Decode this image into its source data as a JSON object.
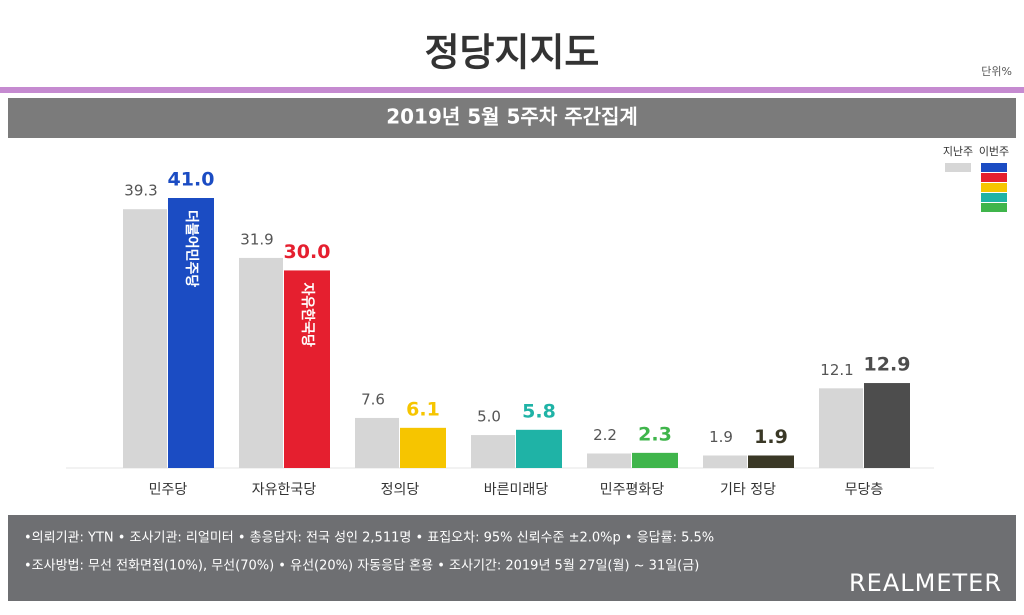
{
  "chart_data": {
    "type": "bar",
    "title": "정당지지도",
    "unit_note": "단위%",
    "subtitle": "2019년 5월 5주차 주간집계",
    "categories": [
      "민주당",
      "자유한국당",
      "정의당",
      "바른미래당",
      "민주평화당",
      "기타 정당",
      "무당층"
    ],
    "series": [
      {
        "name": "지난주",
        "color": "#d6d6d6",
        "values": [
          39.3,
          31.9,
          7.6,
          5.0,
          2.2,
          1.9,
          12.1
        ],
        "value_labels": [
          "39.3",
          "31.9",
          "7.6",
          "5.0",
          "2.2",
          "1.9",
          "12.1"
        ]
      },
      {
        "name": "이번주",
        "colors": [
          "#1b4cc3",
          "#e51f2f",
          "#f6c500",
          "#1fb3a6",
          "#3fb54b",
          "#3a3826",
          "#4d4d4d"
        ],
        "values": [
          41.0,
          30.0,
          6.1,
          5.8,
          2.3,
          1.9,
          12.9
        ],
        "value_labels": [
          "41.0",
          "30.0",
          "6.1",
          "5.8",
          "2.3",
          "1.9",
          "12.9"
        ],
        "bar_texts": [
          "더불어민주당",
          "자유한국당",
          null,
          null,
          null,
          null,
          null
        ]
      }
    ],
    "notes": [
      "•의뢰기관: YTN  • 조사기관: 리얼미터  • 총응답자: 전국 성인 2,511명  • 표집오차: 95% 신뢰수준 ±2.0%p  • 응답률: 5.5%",
      "•조사방법: 무선 전화면접(10%), 무선(70%) • 유선(20%) 자동응답 혼용  • 조사기간: 2019년 5월 27일(월) ~ 31일(금)"
    ],
    "source": "REALMETER"
  }
}
